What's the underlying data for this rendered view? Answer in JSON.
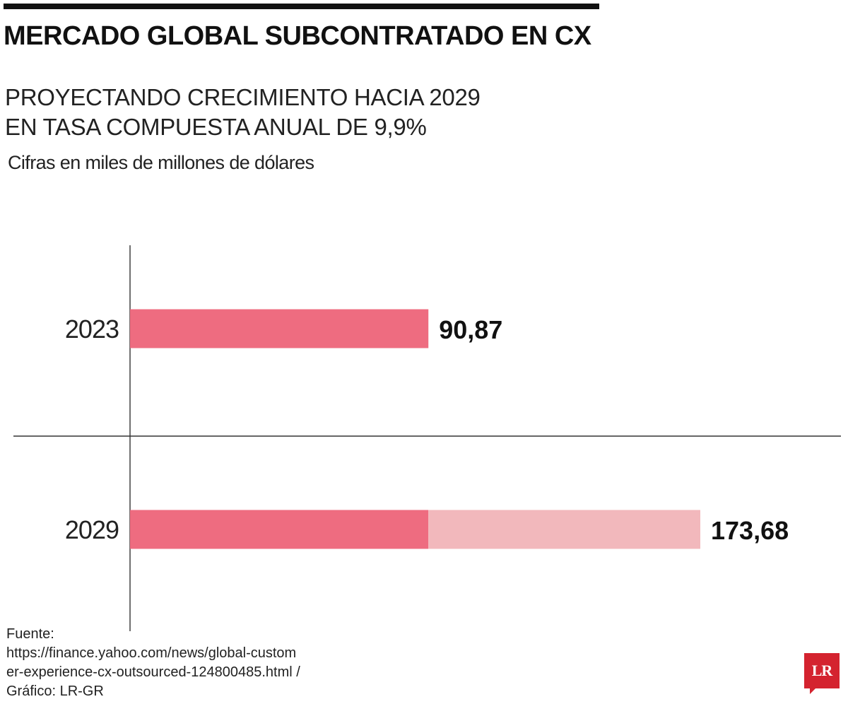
{
  "title": "MERCADO GLOBAL SUBCONTRATADO EN CX",
  "subtitle_line1": "PROYECTANDO CRECIMIENTO HACIA 2029",
  "subtitle_line2": "EN TASA COMPUESTA ANUAL DE 9,9%",
  "units_note": "Cifras en miles de millones de dólares",
  "source_line1": "Fuente:",
  "source_line2": "https://finance.yahoo.com/news/global-custom",
  "source_line3": "er-experience-cx-outsourced-124800485.html /",
  "source_line4": "Gráfico: LR-GR",
  "logo_text": "LR",
  "colors": {
    "bar_base": "#ee6c80",
    "bar_growth": "#f2b8bc",
    "axis": "#333333",
    "logo": "#d4232f"
  },
  "chart_data": {
    "type": "bar",
    "orientation": "horizontal",
    "categories": [
      "2023",
      "2029"
    ],
    "values": [
      90.87,
      173.68
    ],
    "value_labels": [
      "90,87",
      "173,68"
    ],
    "base_value": 90.87,
    "series": [
      {
        "name": "2023 base",
        "color": "#ee6c80"
      },
      {
        "name": "crecimiento",
        "color": "#f2b8bc"
      }
    ],
    "title": "MERCADO GLOBAL SUBCONTRATADO EN CX",
    "xlabel": "",
    "ylabel": "",
    "xlim": [
      0,
      173.68
    ],
    "grid": false
  }
}
